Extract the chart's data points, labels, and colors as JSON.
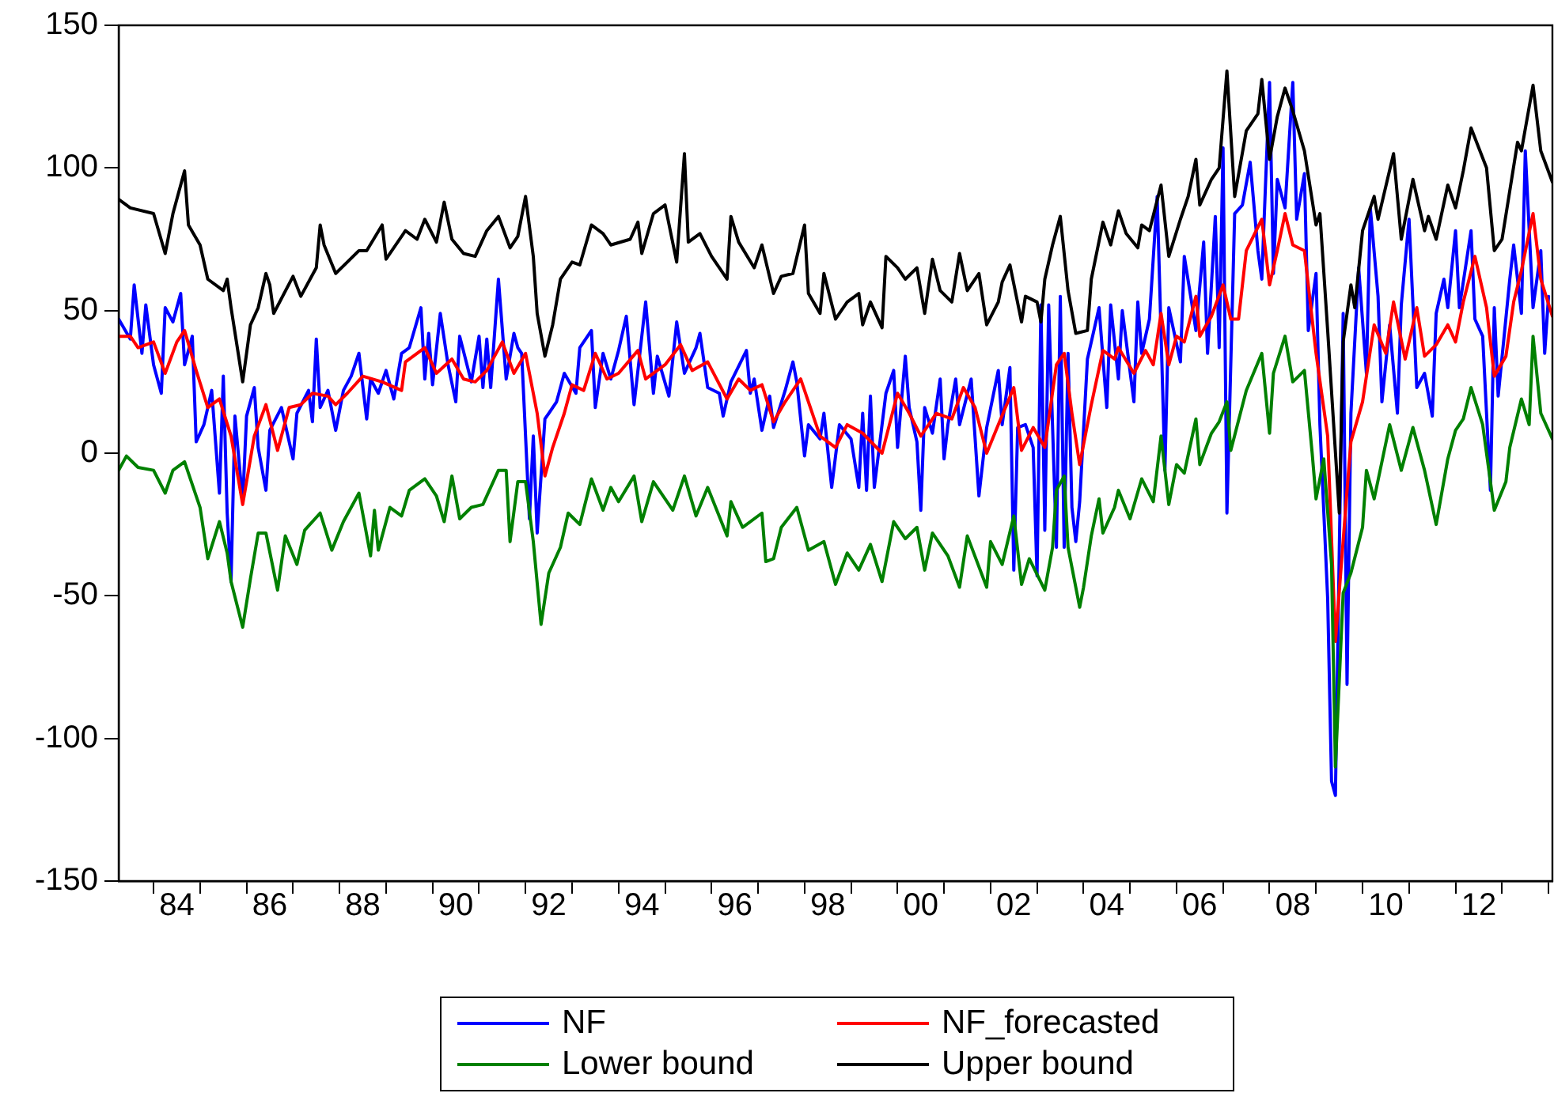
{
  "chart_data": {
    "type": "line",
    "xlim": [
      "1983-04",
      "2014-02"
    ],
    "ylim": [
      -150,
      150
    ],
    "yticks": [
      -150,
      -100,
      -50,
      0,
      50,
      100,
      150
    ],
    "xticks": [
      {
        "value": "1984-01",
        "label": null
      },
      {
        "value": "1984-07",
        "label": "84"
      },
      {
        "value": "1985-01",
        "label": null
      },
      {
        "value": "1986-01",
        "label": null
      },
      {
        "value": "1986-07",
        "label": "86"
      },
      {
        "value": "1987-01",
        "label": null
      },
      {
        "value": "1988-01",
        "label": null
      },
      {
        "value": "1988-07",
        "label": "88"
      },
      {
        "value": "1989-01",
        "label": null
      },
      {
        "value": "1990-01",
        "label": null
      },
      {
        "value": "1990-07",
        "label": "90"
      },
      {
        "value": "1991-01",
        "label": null
      },
      {
        "value": "1992-01",
        "label": null
      },
      {
        "value": "1992-07",
        "label": "92"
      },
      {
        "value": "1993-01",
        "label": null
      },
      {
        "value": "1994-01",
        "label": null
      },
      {
        "value": "1994-07",
        "label": "94"
      },
      {
        "value": "1995-01",
        "label": null
      },
      {
        "value": "1996-01",
        "label": null
      },
      {
        "value": "1996-07",
        "label": "96"
      },
      {
        "value": "1997-01",
        "label": null
      },
      {
        "value": "1998-01",
        "label": null
      },
      {
        "value": "1998-07",
        "label": "98"
      },
      {
        "value": "1999-01",
        "label": null
      },
      {
        "value": "2000-01",
        "label": null
      },
      {
        "value": "2000-07",
        "label": "00"
      },
      {
        "value": "2001-01",
        "label": null
      },
      {
        "value": "2002-01",
        "label": null
      },
      {
        "value": "2002-07",
        "label": "02"
      },
      {
        "value": "2003-01",
        "label": null
      },
      {
        "value": "2004-01",
        "label": null
      },
      {
        "value": "2004-07",
        "label": "04"
      },
      {
        "value": "2005-01",
        "label": null
      },
      {
        "value": "2006-01",
        "label": null
      },
      {
        "value": "2006-07",
        "label": "06"
      },
      {
        "value": "2007-01",
        "label": null
      },
      {
        "value": "2008-01",
        "label": null
      },
      {
        "value": "2008-07",
        "label": "08"
      },
      {
        "value": "2009-01",
        "label": null
      },
      {
        "value": "2010-01",
        "label": null
      },
      {
        "value": "2010-07",
        "label": "10"
      },
      {
        "value": "2011-01",
        "label": null
      },
      {
        "value": "2012-01",
        "label": null
      },
      {
        "value": "2012-07",
        "label": "12"
      },
      {
        "value": "2013-01",
        "label": null
      },
      {
        "value": "2014-01",
        "label": null
      }
    ],
    "grid": false,
    "legend": "bottom",
    "marker": "none",
    "line_style": "solid",
    "series": [
      {
        "name": "NF",
        "color": "#0000ff",
        "x": [
          "1983-04",
          "1983-07",
          "1983-08",
          "1983-10",
          "1983-11",
          "1984-01",
          "1984-03",
          "1984-04",
          "1984-06",
          "1984-08",
          "1984-09",
          "1984-11",
          "1984-12",
          "1985-02",
          "1985-04",
          "1985-06",
          "1985-07",
          "1985-08",
          "1985-09",
          "1985-10",
          "1985-12",
          "1986-01",
          "1986-03",
          "1986-04",
          "1986-06",
          "1986-07",
          "1986-10",
          "1987-01",
          "1987-02",
          "1987-05",
          "1987-06",
          "1987-07",
          "1987-08",
          "1987-10",
          "1987-12",
          "1988-02",
          "1988-04",
          "1988-06",
          "1988-08",
          "1988-09",
          "1988-11",
          "1989-01",
          "1989-03",
          "1989-05",
          "1989-07",
          "1989-10",
          "1989-11",
          "1989-12",
          "1990-01",
          "1990-03",
          "1990-05",
          "1990-07",
          "1990-08",
          "1990-11",
          "1991-01",
          "1991-02",
          "1991-03",
          "1991-04",
          "1991-06",
          "1991-08",
          "1991-10",
          "1991-11",
          "1991-12",
          "1992-02",
          "1992-03",
          "1992-04",
          "1992-06",
          "1992-07",
          "1992-09",
          "1992-11",
          "1993-02",
          "1993-03",
          "1993-06",
          "1993-07",
          "1993-09",
          "1993-11",
          "1994-01",
          "1994-03",
          "1994-05",
          "1994-08",
          "1994-10",
          "1994-11",
          "1995-02",
          "1995-04",
          "1995-06",
          "1995-09",
          "1995-10",
          "1995-12",
          "1996-03",
          "1996-04",
          "1996-06",
          "1996-10",
          "1996-11",
          "1996-12",
          "1997-02",
          "1997-04",
          "1997-05",
          "1997-08",
          "1997-10",
          "1997-11",
          "1998-01",
          "1998-02",
          "1998-05",
          "1998-06",
          "1998-08",
          "1998-10",
          "1999-01",
          "1999-03",
          "1999-04",
          "1999-05",
          "1999-06",
          "1999-07",
          "1999-09",
          "1999-10",
          "1999-12",
          "2000-01",
          "2000-03",
          "2000-04",
          "2000-06",
          "2000-07",
          "2000-08",
          "2000-10",
          "2000-12",
          "2001-01",
          "2001-02",
          "2001-04",
          "2001-05",
          "2001-08",
          "2001-10",
          "2001-12",
          "2002-03",
          "2002-04",
          "2002-06",
          "2002-07",
          "2002-08",
          "2002-10",
          "2002-12",
          "2003-01",
          "2003-02",
          "2003-03",
          "2003-04",
          "2003-06",
          "2003-07",
          "2003-08",
          "2003-09",
          "2003-10",
          "2003-11",
          "2003-12",
          "2004-02",
          "2004-03",
          "2004-05",
          "2004-07",
          "2004-08",
          "2004-10",
          "2004-11",
          "2005-02",
          "2005-03",
          "2005-04",
          "2005-06",
          "2005-08",
          "2005-10",
          "2005-11",
          "2006-02",
          "2006-03",
          "2006-05",
          "2006-06",
          "2006-08",
          "2006-09",
          "2006-11",
          "2006-12",
          "2007-01",
          "2007-02",
          "2007-04",
          "2007-06",
          "2007-08",
          "2007-10",
          "2007-11",
          "2008-01",
          "2008-02",
          "2008-03",
          "2008-05",
          "2008-07",
          "2008-08",
          "2008-10",
          "2008-11",
          "2009-01",
          "2009-02",
          "2009-04",
          "2009-05",
          "2009-06",
          "2009-07",
          "2009-08",
          "2009-09",
          "2009-10",
          "2009-12",
          "2010-02",
          "2010-03",
          "2010-05",
          "2010-06",
          "2010-08",
          "2010-10",
          "2010-11",
          "2011-01",
          "2011-03",
          "2011-05",
          "2011-07",
          "2011-08",
          "2011-10",
          "2011-11",
          "2012-01",
          "2012-02",
          "2012-05",
          "2012-06",
          "2012-08",
          "2012-10",
          "2012-11",
          "2012-12",
          "2013-03",
          "2013-04",
          "2013-06",
          "2013-07",
          "2013-09",
          "2013-11",
          "2013-12",
          "2014-01"
        ],
        "values": [
          47,
          40,
          59,
          35,
          52,
          31,
          21,
          51,
          46,
          56,
          31,
          41,
          4,
          10,
          22,
          -14,
          27,
          -21,
          -45,
          13,
          -17,
          13,
          23,
          2,
          -13,
          8,
          16,
          -2,
          14,
          22,
          11,
          40,
          16,
          22,
          8,
          22,
          27,
          35,
          12,
          26,
          21,
          29,
          19,
          35,
          37,
          51,
          26,
          42,
          24,
          49,
          31,
          18,
          41,
          25,
          41,
          23,
          40,
          23,
          61,
          26,
          42,
          37,
          35,
          -23,
          6,
          -28,
          12,
          14,
          18,
          28,
          21,
          37,
          43,
          16,
          35,
          26,
          36,
          48,
          17,
          53,
          21,
          34,
          20,
          46,
          28,
          37,
          42,
          23,
          21,
          13,
          25,
          36,
          21,
          26,
          8,
          20,
          9,
          22,
          32,
          25,
          -1,
          10,
          5,
          14,
          -12,
          10,
          5,
          -12,
          14,
          -13,
          20,
          -12,
          10,
          21,
          29,
          2,
          34,
          16,
          4,
          -20,
          16,
          7,
          26,
          -2,
          10,
          26,
          10,
          26,
          -15,
          9,
          29,
          10,
          30,
          -41,
          9,
          10,
          2,
          -43,
          52,
          -27,
          52,
          -33,
          55,
          -33,
          35,
          -19,
          -31,
          -17,
          33,
          39,
          51,
          16,
          52,
          26,
          50,
          18,
          53,
          35,
          47,
          90,
          -6,
          51,
          32,
          69,
          52,
          43,
          74,
          35,
          83,
          37,
          107,
          -21,
          84,
          87,
          102,
          71,
          61,
          130,
          63,
          96,
          86,
          130,
          82,
          98,
          43,
          63,
          10,
          -51,
          -115,
          -120,
          -34,
          49,
          -81,
          14,
          65,
          28,
          86,
          55,
          18,
          45,
          14,
          52,
          82,
          23,
          28,
          13,
          49,
          61,
          51,
          78,
          51,
          78,
          47,
          41,
          -13,
          51,
          20,
          61,
          73,
          49,
          106,
          51,
          71,
          35,
          55
        ]
      },
      {
        "name": "NF_forecasted",
        "color": "#ff0000",
        "x": [
          "1983-04",
          "1983-07",
          "1983-09",
          "1984-01",
          "1984-04",
          "1984-07",
          "1984-09",
          "1984-12",
          "1985-03",
          "1985-06",
          "1985-09",
          "1985-12",
          "1986-03",
          "1986-06",
          "1986-09",
          "1986-12",
          "1987-03",
          "1987-06",
          "1987-10",
          "1987-12",
          "1988-03",
          "1988-07",
          "1988-12",
          "1989-05",
          "1989-06",
          "1989-11",
          "1990-02",
          "1990-06",
          "1990-09",
          "1990-12",
          "1991-03",
          "1991-07",
          "1991-10",
          "1992-01",
          "1992-04",
          "1992-06",
          "1992-08",
          "1992-11",
          "1993-01",
          "1993-04",
          "1993-07",
          "1993-10",
          "1994-01",
          "1994-06",
          "1994-08",
          "1995-01",
          "1995-05",
          "1995-08",
          "1995-12",
          "1996-05",
          "1996-08",
          "1996-11",
          "1997-02",
          "1997-05",
          "1997-08",
          "1997-12",
          "1998-05",
          "1998-09",
          "1998-12",
          "1999-04",
          "1999-09",
          "2000-01",
          "2000-04",
          "2000-07",
          "2000-11",
          "2001-03",
          "2001-06",
          "2001-09",
          "2001-12",
          "2002-03",
          "2002-07",
          "2002-09",
          "2002-12",
          "2003-03",
          "2003-06",
          "2003-08",
          "2003-10",
          "2003-12",
          "2004-03",
          "2004-06",
          "2004-09",
          "2004-10",
          "2005-02",
          "2005-05",
          "2005-07",
          "2005-09",
          "2005-11",
          "2006-01",
          "2006-03",
          "2006-06",
          "2006-07",
          "2006-10",
          "2007-01",
          "2007-03",
          "2007-05",
          "2007-07",
          "2007-11",
          "2008-01",
          "2008-03",
          "2008-05",
          "2008-07",
          "2008-10",
          "2009-01",
          "2009-04",
          "2009-06",
          "2009-09",
          "2009-10",
          "2010-01",
          "2010-04",
          "2010-07",
          "2010-09",
          "2010-12",
          "2011-03",
          "2011-05",
          "2011-08",
          "2011-11",
          "2012-01",
          "2012-03",
          "2012-06",
          "2012-09",
          "2012-11",
          "2013-02",
          "2013-04",
          "2013-06",
          "2013-09",
          "2013-11",
          "2014-02"
        ],
        "values": [
          41,
          41,
          37,
          39,
          28,
          39,
          43,
          29,
          16,
          19,
          6,
          -18,
          6,
          17,
          1,
          16,
          17,
          21,
          20,
          17,
          21,
          27,
          25,
          22,
          32,
          37,
          28,
          33,
          26,
          25,
          29,
          39,
          28,
          35,
          14,
          -8,
          2,
          14,
          24,
          22,
          35,
          26,
          28,
          36,
          26,
          31,
          38,
          29,
          32,
          19,
          26,
          22,
          24,
          11,
          18,
          26,
          6,
          2,
          10,
          7,
          0,
          21,
          14,
          6,
          14,
          12,
          23,
          16,
          0,
          10,
          23,
          1,
          9,
          2,
          31,
          35,
          14,
          -4,
          17,
          36,
          33,
          37,
          28,
          36,
          31,
          49,
          31,
          41,
          39,
          55,
          41,
          48,
          59,
          47,
          47,
          71,
          82,
          59,
          71,
          84,
          73,
          71,
          35,
          6,
          -66,
          -13,
          4,
          18,
          45,
          35,
          53,
          33,
          51,
          34,
          38,
          45,
          39,
          53,
          69,
          51,
          27,
          34,
          53,
          64,
          84,
          61,
          48
        ]
      },
      {
        "name": "Lower bound",
        "color": "#008000",
        "x": [
          "1983-04",
          "1983-06",
          "1983-09",
          "1984-01",
          "1984-04",
          "1984-06",
          "1984-09",
          "1985-01",
          "1985-03",
          "1985-06",
          "1985-08",
          "1985-09",
          "1985-12",
          "1986-02",
          "1986-04",
          "1986-06",
          "1986-09",
          "1986-11",
          "1987-02",
          "1987-04",
          "1987-08",
          "1987-11",
          "1988-02",
          "1988-06",
          "1988-09",
          "1988-10",
          "1988-11",
          "1989-02",
          "1989-05",
          "1989-07",
          "1989-11",
          "1990-02",
          "1990-04",
          "1990-06",
          "1990-08",
          "1990-11",
          "1991-02",
          "1991-06",
          "1991-08",
          "1991-09",
          "1991-11",
          "1992-01",
          "1992-03",
          "1992-05",
          "1992-07",
          "1992-10",
          "1992-12",
          "1993-03",
          "1993-06",
          "1993-09",
          "1993-11",
          "1994-01",
          "1994-05",
          "1994-07",
          "1994-10",
          "1995-03",
          "1995-06",
          "1995-09",
          "1995-12",
          "1996-05",
          "1996-06",
          "1996-09",
          "1997-02",
          "1997-03",
          "1997-05",
          "1997-07",
          "1997-11",
          "1998-02",
          "1998-06",
          "1998-09",
          "1998-12",
          "1999-03",
          "1999-06",
          "1999-09",
          "1999-12",
          "2000-03",
          "2000-06",
          "2000-08",
          "2000-10",
          "2001-02",
          "2001-05",
          "2001-07",
          "2001-12",
          "2002-01",
          "2002-04",
          "2002-07",
          "2002-09",
          "2002-11",
          "2003-03",
          "2003-05",
          "2003-06",
          "2003-08",
          "2003-09",
          "2003-12",
          "2004-01",
          "2004-03",
          "2004-05",
          "2004-06",
          "2004-09",
          "2004-10",
          "2005-01",
          "2005-04",
          "2005-07",
          "2005-09",
          "2005-11",
          "2006-01",
          "2006-03",
          "2006-06",
          "2006-07",
          "2006-10",
          "2006-12",
          "2007-02",
          "2007-03",
          "2007-07",
          "2007-11",
          "2008-01",
          "2008-02",
          "2008-05",
          "2008-07",
          "2008-10",
          "2008-12",
          "2009-01",
          "2009-03",
          "2009-05",
          "2009-06",
          "2009-08",
          "2009-10",
          "2010-01",
          "2010-02",
          "2010-04",
          "2010-06",
          "2010-08",
          "2010-11",
          "2011-02",
          "2011-05",
          "2011-08",
          "2011-11",
          "2012-01",
          "2012-03",
          "2012-05",
          "2012-08",
          "2012-11",
          "2013-02",
          "2013-03",
          "2013-06",
          "2013-08",
          "2013-09",
          "2013-11",
          "2014-02"
        ],
        "values": [
          -6,
          -1,
          -5,
          -6,
          -14,
          -6,
          -3,
          -19,
          -37,
          -24,
          -35,
          -45,
          -61,
          -44,
          -28,
          -28,
          -48,
          -29,
          -39,
          -27,
          -21,
          -34,
          -24,
          -14,
          -36,
          -20,
          -34,
          -19,
          -22,
          -13,
          -9,
          -15,
          -24,
          -8,
          -23,
          -19,
          -18,
          -6,
          -6,
          -31,
          -10,
          -10,
          -31,
          -60,
          -42,
          -33,
          -21,
          -25,
          -9,
          -20,
          -12,
          -17,
          -8,
          -24,
          -10,
          -20,
          -8,
          -22,
          -12,
          -29,
          -17,
          -26,
          -21,
          -38,
          -37,
          -26,
          -19,
          -34,
          -31,
          -46,
          -35,
          -41,
          -32,
          -45,
          -24,
          -30,
          -26,
          -41,
          -28,
          -36,
          -47,
          -29,
          -47,
          -31,
          -39,
          -22,
          -46,
          -37,
          -48,
          -33,
          -13,
          -8,
          -33,
          -54,
          -47,
          -29,
          -16,
          -28,
          -19,
          -13,
          -23,
          -9,
          -17,
          6,
          -18,
          -4,
          -7,
          12,
          -4,
          7,
          11,
          18,
          1,
          22,
          35,
          7,
          28,
          41,
          25,
          29,
          0,
          -16,
          -2,
          -39,
          -110,
          -49,
          -42,
          -26,
          -6,
          -16,
          -3,
          10,
          -6,
          9,
          -6,
          -25,
          -2,
          8,
          12,
          23,
          10,
          -20,
          -10,
          2,
          19,
          10,
          41,
          14,
          5
        ]
      },
      {
        "name": "Upper bound",
        "color": "#000000",
        "x": [
          "1983-04",
          "1983-07",
          "1984-01",
          "1984-04",
          "1984-06",
          "1984-09",
          "1984-10",
          "1985-01",
          "1985-03",
          "1985-07",
          "1985-08",
          "1985-09",
          "1985-12",
          "1986-02",
          "1986-04",
          "1986-06",
          "1986-07",
          "1986-08",
          "1987-01",
          "1987-03",
          "1987-07",
          "1987-08",
          "1987-09",
          "1987-12",
          "1988-03",
          "1988-06",
          "1988-08",
          "1988-12",
          "1989-01",
          "1989-06",
          "1989-09",
          "1989-11",
          "1990-02",
          "1990-04",
          "1990-06",
          "1990-09",
          "1990-12",
          "1991-03",
          "1991-06",
          "1991-09",
          "1991-11",
          "1992-01",
          "1992-03",
          "1992-04",
          "1992-06",
          "1992-08",
          "1992-10",
          "1993-01",
          "1993-03",
          "1993-06",
          "1993-09",
          "1993-11",
          "1994-04",
          "1994-06",
          "1994-07",
          "1994-10",
          "1995-01",
          "1995-04",
          "1995-06",
          "1995-07",
          "1995-10",
          "1996-01",
          "1996-05",
          "1996-06",
          "1996-08",
          "1996-12",
          "1997-02",
          "1997-05",
          "1997-07",
          "1997-10",
          "1998-01",
          "1998-02",
          "1998-05",
          "1998-06",
          "1998-09",
          "1998-12",
          "1999-03",
          "1999-04",
          "1999-06",
          "1999-09",
          "1999-10",
          "2000-01",
          "2000-03",
          "2000-06",
          "2000-08",
          "2000-10",
          "2000-12",
          "2001-03",
          "2001-05",
          "2001-07",
          "2001-10",
          "2001-12",
          "2002-03",
          "2002-04",
          "2002-06",
          "2002-09",
          "2002-10",
          "2003-01",
          "2003-02",
          "2003-03",
          "2003-05",
          "2003-07",
          "2003-09",
          "2003-11",
          "2004-02",
          "2004-03",
          "2004-06",
          "2004-08",
          "2004-10",
          "2004-12",
          "2005-03",
          "2005-04",
          "2005-06",
          "2005-09",
          "2005-11",
          "2006-02",
          "2006-04",
          "2006-06",
          "2006-07",
          "2006-10",
          "2006-12",
          "2007-02",
          "2007-04",
          "2007-07",
          "2007-10",
          "2007-11",
          "2008-01",
          "2008-03",
          "2008-05",
          "2008-07",
          "2008-10",
          "2009-01",
          "2009-02",
          "2009-04",
          "2009-07",
          "2009-08",
          "2009-10",
          "2009-11",
          "2010-01",
          "2010-04",
          "2010-05",
          "2010-09",
          "2010-11",
          "2011-02",
          "2011-05",
          "2011-06",
          "2011-08",
          "2011-11",
          "2012-01",
          "2012-03",
          "2012-05",
          "2012-09",
          "2012-11",
          "2013-01",
          "2013-03",
          "2013-05",
          "2013-06",
          "2013-09",
          "2013-11",
          "2014-02"
        ],
        "values": [
          89,
          86,
          84,
          70,
          84,
          99,
          80,
          73,
          61,
          57,
          61,
          51,
          25,
          45,
          51,
          63,
          59,
          49,
          62,
          55,
          65,
          80,
          73,
          63,
          67,
          71,
          71,
          80,
          68,
          78,
          75,
          82,
          74,
          88,
          75,
          70,
          69,
          78,
          83,
          72,
          76,
          90,
          69,
          49,
          34,
          45,
          61,
          67,
          66,
          80,
          77,
          73,
          75,
          81,
          70,
          84,
          87,
          67,
          105,
          74,
          77,
          69,
          61,
          83,
          74,
          65,
          73,
          56,
          62,
          63,
          80,
          56,
          49,
          63,
          47,
          53,
          56,
          45,
          53,
          44,
          69,
          65,
          61,
          65,
          49,
          68,
          57,
          53,
          70,
          57,
          63,
          45,
          53,
          60,
          66,
          46,
          55,
          53,
          46,
          61,
          73,
          83,
          57,
          42,
          43,
          61,
          81,
          73,
          85,
          77,
          72,
          80,
          78,
          94,
          69,
          82,
          90,
          103,
          87,
          96,
          100,
          134,
          90,
          113,
          119,
          131,
          103,
          118,
          128,
          120,
          106,
          80,
          84,
          43,
          -21,
          39,
          59,
          51,
          78,
          90,
          82,
          105,
          75,
          96,
          78,
          83,
          75,
          94,
          86,
          99,
          114,
          100,
          71,
          75,
          92,
          109,
          106,
          129,
          106,
          95
        ]
      }
    ]
  }
}
